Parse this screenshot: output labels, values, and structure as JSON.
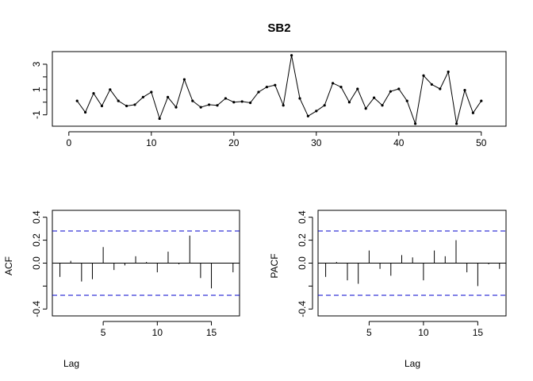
{
  "chart_data": [
    {
      "type": "line",
      "title": "SB2",
      "xlabel": "",
      "ylabel": "",
      "xlim": [
        -2,
        53
      ],
      "ylim": [
        -1.9,
        4.0
      ],
      "xticks": [
        0,
        10,
        20,
        30,
        40,
        50
      ],
      "yticks": [
        -1,
        1,
        3
      ],
      "yticks_minor": [
        0,
        2
      ],
      "grid": false,
      "x": [
        1,
        2,
        3,
        4,
        5,
        6,
        7,
        8,
        9,
        10,
        11,
        12,
        13,
        14,
        15,
        16,
        17,
        18,
        19,
        20,
        21,
        22,
        23,
        24,
        25,
        26,
        27,
        28,
        29,
        30,
        31,
        32,
        33,
        34,
        35,
        36,
        37,
        38,
        39,
        40,
        41,
        42,
        43,
        44,
        45,
        46,
        47,
        48,
        49,
        50
      ],
      "values": [
        0.1,
        -0.8,
        0.7,
        -0.3,
        1.0,
        0.1,
        -0.3,
        -0.2,
        0.4,
        0.8,
        -1.3,
        0.4,
        -0.4,
        1.8,
        0.1,
        -0.4,
        -0.2,
        -0.25,
        0.3,
        0.0,
        0.05,
        -0.05,
        0.8,
        1.2,
        1.35,
        -0.25,
        3.7,
        0.3,
        -1.1,
        -0.7,
        -0.25,
        1.5,
        1.2,
        0.0,
        1.05,
        -0.5,
        0.35,
        -0.25,
        0.85,
        1.05,
        0.1,
        -1.7,
        2.1,
        1.4,
        1.05,
        2.4,
        -1.7,
        0.95,
        -0.85,
        0.1
      ]
    },
    {
      "type": "bar",
      "title": "",
      "xlabel": "Lag",
      "ylabel": "ACF",
      "xlim": [
        0.3,
        17.6
      ],
      "ylim": [
        -0.46,
        0.46
      ],
      "xticks": [
        5,
        10,
        15
      ],
      "yticks": [
        -0.4,
        -0.2,
        0.0,
        0.2,
        0.4
      ],
      "ytick_labels": [
        "-0.4",
        "",
        "0.0",
        "0.2",
        "0.4"
      ],
      "ci": 0.28,
      "lags": [
        1,
        2,
        3,
        4,
        5,
        6,
        7,
        8,
        9,
        10,
        11,
        12,
        13,
        14,
        15,
        16,
        17
      ],
      "values": [
        -0.12,
        0.02,
        -0.16,
        -0.14,
        0.14,
        -0.06,
        -0.02,
        0.06,
        0.01,
        -0.08,
        0.1,
        -0.01,
        0.24,
        -0.13,
        -0.22,
        0.0,
        -0.08
      ]
    },
    {
      "type": "bar",
      "title": "",
      "xlabel": "Lag",
      "ylabel": "PACF",
      "xlim": [
        0.3,
        17.6
      ],
      "ylim": [
        -0.46,
        0.46
      ],
      "xticks": [
        5,
        10,
        15
      ],
      "yticks": [
        -0.4,
        -0.2,
        0.0,
        0.2,
        0.4
      ],
      "ytick_labels": [
        "-0.4",
        "",
        "0.0",
        "0.2",
        "0.4"
      ],
      "ci": 0.28,
      "lags": [
        1,
        2,
        3,
        4,
        5,
        6,
        7,
        8,
        9,
        10,
        11,
        12,
        13,
        14,
        15,
        16,
        17
      ],
      "values": [
        -0.12,
        0.01,
        -0.15,
        -0.18,
        0.11,
        -0.05,
        -0.11,
        0.07,
        0.05,
        -0.15,
        0.11,
        0.06,
        0.2,
        -0.08,
        -0.2,
        -0.01,
        -0.05
      ]
    }
  ]
}
